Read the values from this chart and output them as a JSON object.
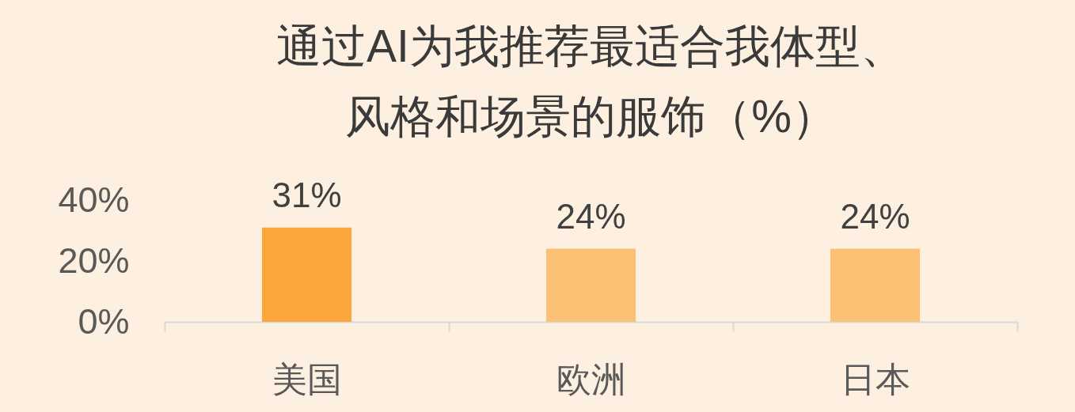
{
  "chart_data": {
    "type": "bar",
    "title": "通过AI为我推荐最适合我体型、风格和场景的服饰（%）",
    "categories": [
      "美国",
      "欧洲",
      "日本"
    ],
    "values": [
      31,
      24,
      24
    ],
    "colors": [
      "#fda63c",
      "#fcc074",
      "#fcc074"
    ],
    "value_labels": [
      "31%",
      "24%",
      "24%"
    ],
    "ylim": [
      0,
      40
    ],
    "yticks": [
      {
        "value": 0,
        "label": "0%"
      },
      {
        "value": 20,
        "label": "20%"
      },
      {
        "value": 40,
        "label": "40%"
      }
    ]
  }
}
